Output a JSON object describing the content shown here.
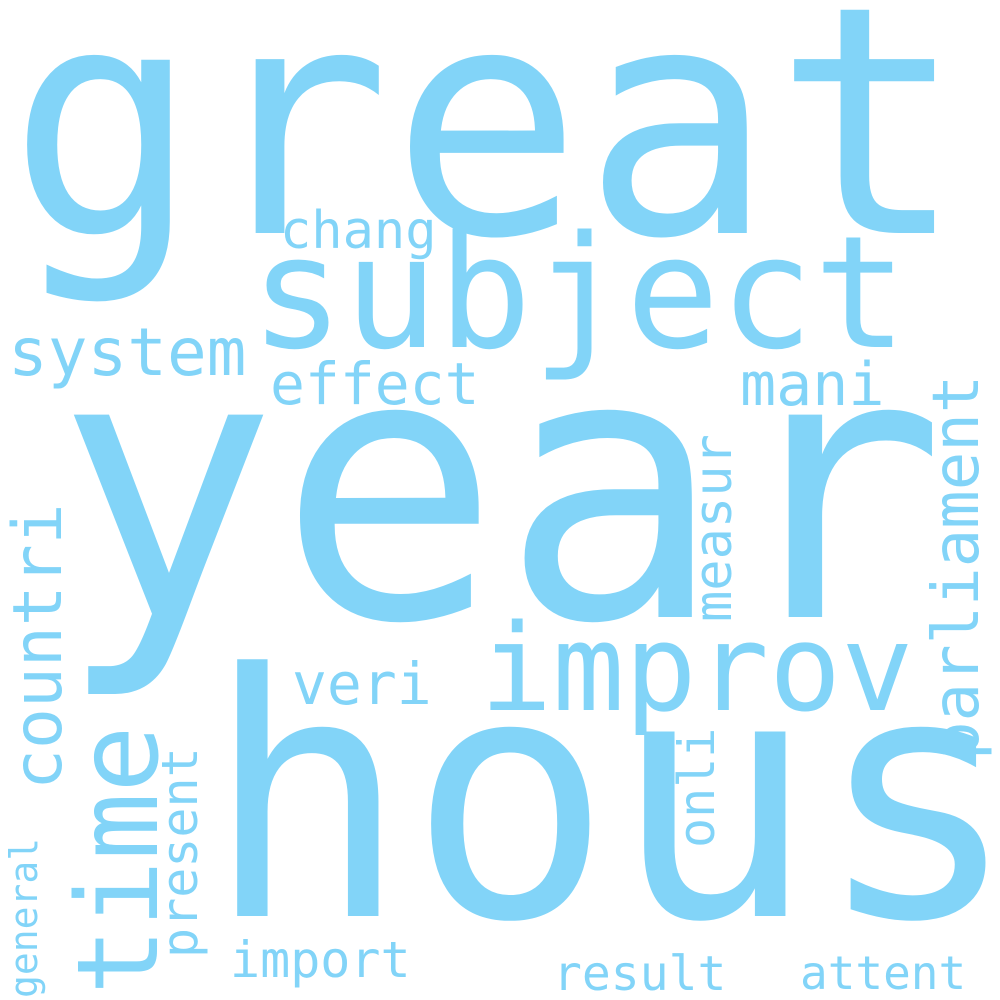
{
  "style": {
    "word_color": "#82d4f8",
    "background": "#ffffff"
  },
  "words": [
    {
      "text": "great",
      "orientation": "horizontal"
    },
    {
      "text": "year",
      "orientation": "horizontal"
    },
    {
      "text": "hous",
      "orientation": "horizontal"
    },
    {
      "text": "subject",
      "orientation": "horizontal"
    },
    {
      "text": "improv",
      "orientation": "horizontal"
    },
    {
      "text": "time",
      "orientation": "vertical"
    },
    {
      "text": "countri",
      "orientation": "vertical"
    },
    {
      "text": "parliament",
      "orientation": "vertical"
    },
    {
      "text": "measur",
      "orientation": "vertical"
    },
    {
      "text": "system",
      "orientation": "horizontal"
    },
    {
      "text": "effect",
      "orientation": "horizontal"
    },
    {
      "text": "mani",
      "orientation": "horizontal"
    },
    {
      "text": "veri",
      "orientation": "horizontal"
    },
    {
      "text": "chang",
      "orientation": "horizontal"
    },
    {
      "text": "present",
      "orientation": "vertical"
    },
    {
      "text": "onli",
      "orientation": "vertical"
    },
    {
      "text": "general",
      "orientation": "vertical"
    },
    {
      "text": "import",
      "orientation": "horizontal"
    },
    {
      "text": "result",
      "orientation": "horizontal"
    },
    {
      "text": "attent",
      "orientation": "horizontal"
    }
  ]
}
